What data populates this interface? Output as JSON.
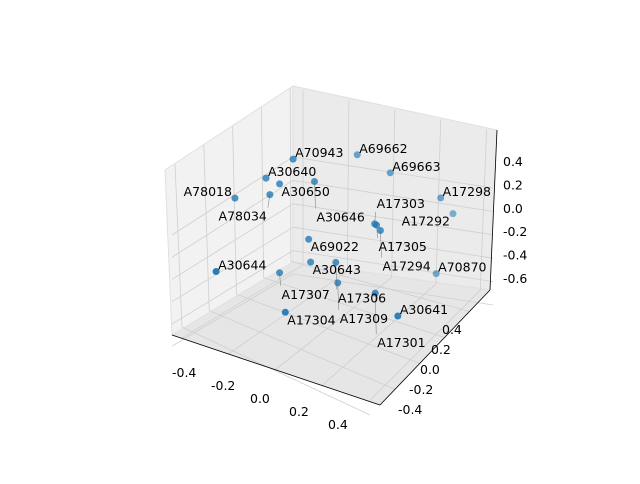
{
  "chart_data": {
    "type": "scatter",
    "projection": "3d",
    "title": "",
    "xlabel": "",
    "ylabel": "",
    "zlabel": "",
    "xlim": [
      -0.5,
      0.5
    ],
    "ylim": [
      -0.5,
      0.5
    ],
    "zlim": [
      -0.7,
      0.5
    ],
    "x_ticks": [
      "-0.4",
      "-0.2",
      "0.0",
      "0.2",
      "0.4"
    ],
    "y_ticks": [
      "-0.4",
      "-0.2",
      "0.0",
      "0.2",
      "0.4"
    ],
    "z_ticks": [
      "-0.6",
      "-0.4",
      "-0.2",
      "0.0",
      "0.2",
      "0.4"
    ],
    "grid": true,
    "color": "#1f77b4",
    "points": [
      {
        "label": "A70943",
        "x": -0.19,
        "y": 0.0,
        "z": 0.4
      },
      {
        "label": "A69662",
        "x": 0.06,
        "y": 0.3,
        "z": 0.32
      },
      {
        "label": "A69663",
        "x": 0.23,
        "y": 0.3,
        "z": 0.26
      },
      {
        "label": "A30640",
        "x": -0.33,
        "y": 0.0,
        "z": 0.16
      },
      {
        "label": "A30650",
        "x": -0.26,
        "y": 0.0,
        "z": 0.15
      },
      {
        "label": "A30646",
        "x": -0.08,
        "y": 0.0,
        "z": 0.27
      },
      {
        "label": "A78018",
        "x": -0.49,
        "y": 0.0,
        "z": -0.1
      },
      {
        "label": "A78034",
        "x": -0.31,
        "y": 0.0,
        "z": 0.03
      },
      {
        "label": "A17298",
        "x": 0.49,
        "y": 0.3,
        "z": 0.19
      },
      {
        "label": "A17292",
        "x": 0.5,
        "y": 0.5,
        "z": -0.11
      },
      {
        "label": "A17303",
        "x": 0.23,
        "y": 0.0,
        "z": 0.08
      },
      {
        "label": "A17305",
        "x": 0.24,
        "y": 0.0,
        "z": 0.075
      },
      {
        "label": "A17294",
        "x": 0.26,
        "y": 0.0,
        "z": 0.04
      },
      {
        "label": "A69022",
        "x": -0.11,
        "y": 0.0,
        "z": -0.24
      },
      {
        "label": "A30643",
        "x": -0.1,
        "y": 0.0,
        "z": -0.43
      },
      {
        "label": "A17306",
        "x": 0.03,
        "y": 0.0,
        "z": -0.36
      },
      {
        "label": "A30644",
        "x": -0.48,
        "y": -0.4,
        "z": -0.38
      },
      {
        "label": "A17307",
        "x": -0.26,
        "y": 0.0,
        "z": -0.61
      },
      {
        "label": "A17309",
        "x": 0.04,
        "y": 0.0,
        "z": -0.53
      },
      {
        "label": "A70870",
        "x": 0.44,
        "y": 0.4,
        "z": -0.57
      },
      {
        "label": "A17301",
        "x": 0.26,
        "y": -0.1,
        "z": -0.41
      },
      {
        "label": "A17304",
        "x": -0.15,
        "y": -0.3,
        "z": -0.63
      },
      {
        "label": "A30641",
        "x": 0.43,
        "y": -0.3,
        "z": -0.34
      }
    ]
  }
}
